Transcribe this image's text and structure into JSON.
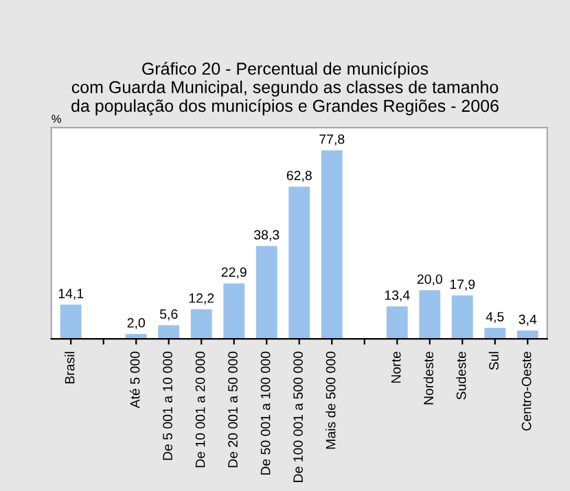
{
  "chart_data": {
    "type": "bar",
    "title": "Gráfico 20 - Percentual de municípios\ncom Guarda Municipal, segundo as classes de tamanho\nda população dos municípios e Grandes Regiões - 2006",
    "ylabel": "%",
    "categories": [
      "Brasil",
      null,
      "Até 5 000",
      "De 5 001 a 10 000",
      "De 10 001 a 20 000",
      "De 20 001 a 50 000",
      "De 50 001 a 100 000",
      "De 100 001 a 500 000",
      "Mais de 500 000",
      null,
      "Norte",
      "Nordeste",
      "Sudeste",
      "Sul",
      "Centro-Oeste"
    ],
    "values": [
      14.1,
      null,
      2.0,
      5.6,
      12.2,
      22.9,
      38.3,
      62.8,
      77.8,
      null,
      13.4,
      20.0,
      17.9,
      4.5,
      3.4
    ],
    "value_labels": [
      "14,1",
      null,
      "2,0",
      "5,6",
      "12,2",
      "22,9",
      "38,3",
      "62,8",
      "77,8",
      null,
      "13,4",
      "20,0",
      "17,9",
      "4,5",
      "3,4"
    ],
    "color": "#99c3ec",
    "grid": false,
    "legend": false
  }
}
